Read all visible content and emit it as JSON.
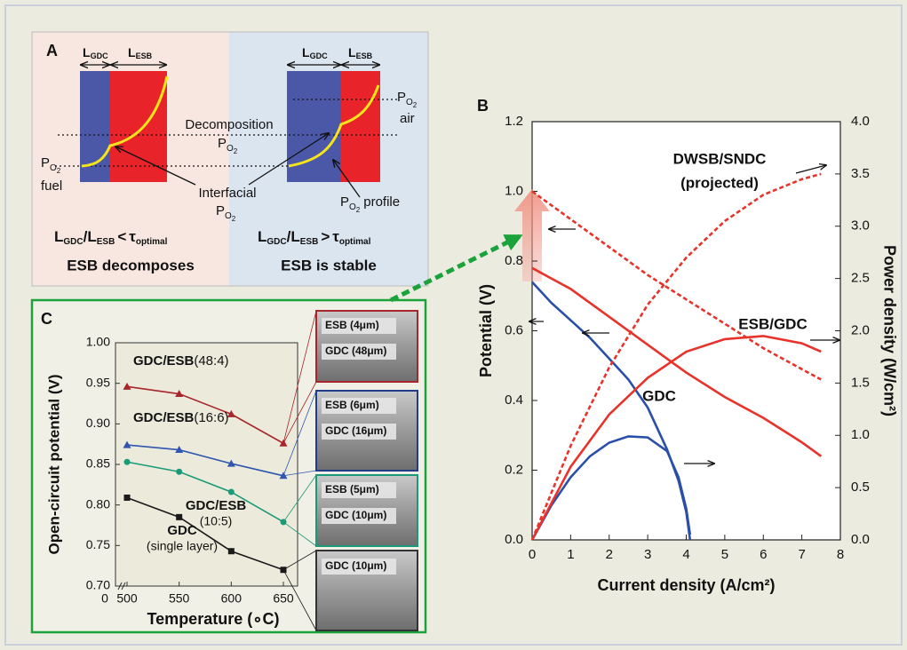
{
  "diagram": {
    "label": "A",
    "l": "L",
    "gdc": "GDC",
    "esb": "ESB",
    "p": "P",
    "o": "O",
    "two": "2",
    "decomposition": "Decomposition",
    "fuel": "fuel",
    "air": "air",
    "interfacial": "Interfacial",
    "profile": "profile",
    "slash": "/",
    "lt": "<",
    "gt": ">",
    "tau": "τ",
    "optimal": "optimal",
    "left_caption": "ESB decomposes",
    "right_caption": "ESB is stable"
  },
  "chart_data": [
    {
      "type": "line",
      "label": "B",
      "x_label": "Current density (A/cm²)",
      "y_label": "Potential (V)",
      "y2_label": "Power density (W/cm²)",
      "xlim": [
        0,
        8
      ],
      "xticks": [
        0,
        1,
        2,
        3,
        4,
        5,
        6,
        7,
        8
      ],
      "ylim": [
        0,
        1.2
      ],
      "yticks": [
        {
          "value": 0,
          "label": "0.0"
        },
        0.2,
        0.4,
        0.6,
        0.8,
        {
          "value": 1,
          "label": "1.0"
        },
        1.2
      ],
      "y2lim": [
        0,
        4
      ],
      "y2ticks": [
        {
          "value": 0,
          "label": "0.0"
        },
        0.5,
        {
          "value": 1,
          "label": "1.0"
        },
        1.5,
        {
          "value": 2,
          "label": "2.0"
        },
        2.5,
        {
          "value": 3,
          "label": "3.0"
        },
        3.5,
        {
          "value": 4,
          "label": "4.0"
        }
      ],
      "series": [
        {
          "color": "#2a4fa8",
          "x": [
            0,
            0.5,
            1,
            1.5,
            2,
            2.5,
            3,
            3.5,
            3.8,
            4,
            4.1
          ],
          "values": [
            0.74,
            0.68,
            0.63,
            0.58,
            0.52,
            0.46,
            0.38,
            0.26,
            0.17,
            0.08,
            0
          ]
        },
        {
          "color": "#2a4fa8",
          "axis": "y2",
          "x": [
            0,
            0.5,
            1,
            1.5,
            2,
            2.5,
            3,
            3.5,
            3.8,
            4,
            4.1
          ],
          "values": [
            0,
            0.33,
            0.6,
            0.8,
            0.93,
            0.99,
            0.98,
            0.85,
            0.6,
            0.3,
            0.05
          ]
        },
        {
          "color": "#e8322a",
          "x": [
            0,
            1,
            2,
            3,
            4,
            5,
            6,
            7,
            7.5
          ],
          "values": [
            0.78,
            0.72,
            0.64,
            0.56,
            0.48,
            0.41,
            0.35,
            0.28,
            0.24
          ]
        },
        {
          "color": "#e8322a",
          "axis": "y2",
          "x": [
            0,
            1,
            2,
            3,
            4,
            5,
            6,
            7,
            7.5
          ],
          "values": [
            0,
            0.7,
            1.2,
            1.55,
            1.8,
            1.92,
            1.95,
            1.88,
            1.8
          ]
        },
        {
          "color": "#e8322a",
          "dashed": true,
          "x": [
            0,
            1,
            2,
            3,
            4,
            5,
            6,
            7,
            7.5
          ],
          "values": [
            1.0,
            0.92,
            0.84,
            0.76,
            0.69,
            0.62,
            0.55,
            0.49,
            0.46
          ]
        },
        {
          "color": "#e8322a",
          "dashed": true,
          "axis": "y2",
          "x": [
            0,
            1,
            2,
            3,
            4,
            5,
            6,
            7,
            7.5
          ],
          "values": [
            0,
            0.9,
            1.65,
            2.25,
            2.7,
            3.05,
            3.3,
            3.45,
            3.5
          ]
        }
      ],
      "annotations": [
        "DWSB/SNDC",
        "(projected)",
        "ESB/GDC",
        "GDC"
      ]
    },
    {
      "type": "line",
      "label": "C",
      "x_label": "Temperature (∘C)",
      "y_label": "Open-circuit potential (V)",
      "x": [
        500,
        550,
        600,
        650
      ],
      "xlim": [
        475,
        670
      ],
      "xticks": [
        500,
        550,
        600,
        650
      ],
      "x_break_label": "0",
      "ylim": [
        0.7,
        1.0
      ],
      "yticks": [
        {
          "value": 0.7,
          "label": "0.70"
        },
        0.75,
        {
          "value": 0.8,
          "label": "0.80"
        },
        0.85,
        {
          "value": 0.9,
          "label": "0.90"
        },
        0.95,
        {
          "value": 1.0,
          "label": "1.00"
        }
      ],
      "series": [
        {
          "name": "GDC/ESB",
          "sublabel": "(48:4)",
          "color": "#a8252b",
          "marker": "triangle",
          "values": [
            0.946,
            0.937,
            0.912,
            0.876
          ]
        },
        {
          "name": "GDC/ESB",
          "sublabel": "(16:6)",
          "color": "#2f55b0",
          "marker": "triangle",
          "values": [
            0.874,
            0.868,
            0.851,
            0.836
          ]
        },
        {
          "name": "GDC/ESB",
          "sublabel": "(10:5)",
          "color": "#1a9a78",
          "marker": "circle",
          "values": [
            0.853,
            0.841,
            0.816,
            0.779
          ]
        },
        {
          "name": "GDC",
          "sublabel": "(single layer)",
          "color": "#1a1a1a",
          "marker": "square",
          "values": [
            0.809,
            0.785,
            0.743,
            0.72
          ]
        }
      ]
    }
  ],
  "micrographs": [
    {
      "border": "#a8252b",
      "layers": [
        "ESB (4μm)",
        "GDC (48μm)"
      ]
    },
    {
      "border": "#1f3d8a",
      "layers": [
        "ESB (6μm)",
        "GDC (16μm)"
      ]
    },
    {
      "border": "#1a9a78",
      "layers": [
        "ESB (5μm)",
        "GDC (10μm)"
      ]
    },
    {
      "border": "#333333",
      "layers": [
        "GDC (10μm)"
      ]
    }
  ]
}
